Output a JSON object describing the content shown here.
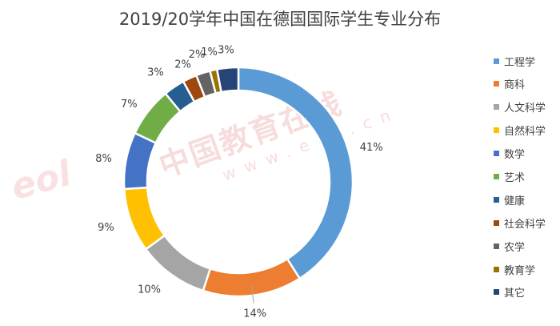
{
  "chart_data": {
    "type": "pie",
    "title": "2019/20学年中国在德国国际学生专业分布",
    "categories": [
      "工程学",
      "商科",
      "人文科学",
      "自然科学",
      "数学",
      "艺术",
      "健康",
      "社会科学",
      "农学",
      "教育学",
      "其它"
    ],
    "values": [
      41,
      14,
      10,
      9,
      8,
      7,
      3,
      2,
      2,
      1,
      3
    ],
    "labels": [
      "41%",
      "14%",
      "10%",
      "9%",
      "8%",
      "7%",
      "3%",
      "2%",
      "2%",
      "1%",
      "3%"
    ],
    "colors": [
      "#5B9BD5",
      "#ED7D31",
      "#A5A5A5",
      "#FFC000",
      "#4472C4",
      "#70AD47",
      "#255E91",
      "#9E480E",
      "#636363",
      "#997300",
      "#264478"
    ],
    "legend_position": "right"
  },
  "watermark": {
    "brand": "eol",
    "text": "中国教育在线",
    "url": "www.eol.cn"
  }
}
